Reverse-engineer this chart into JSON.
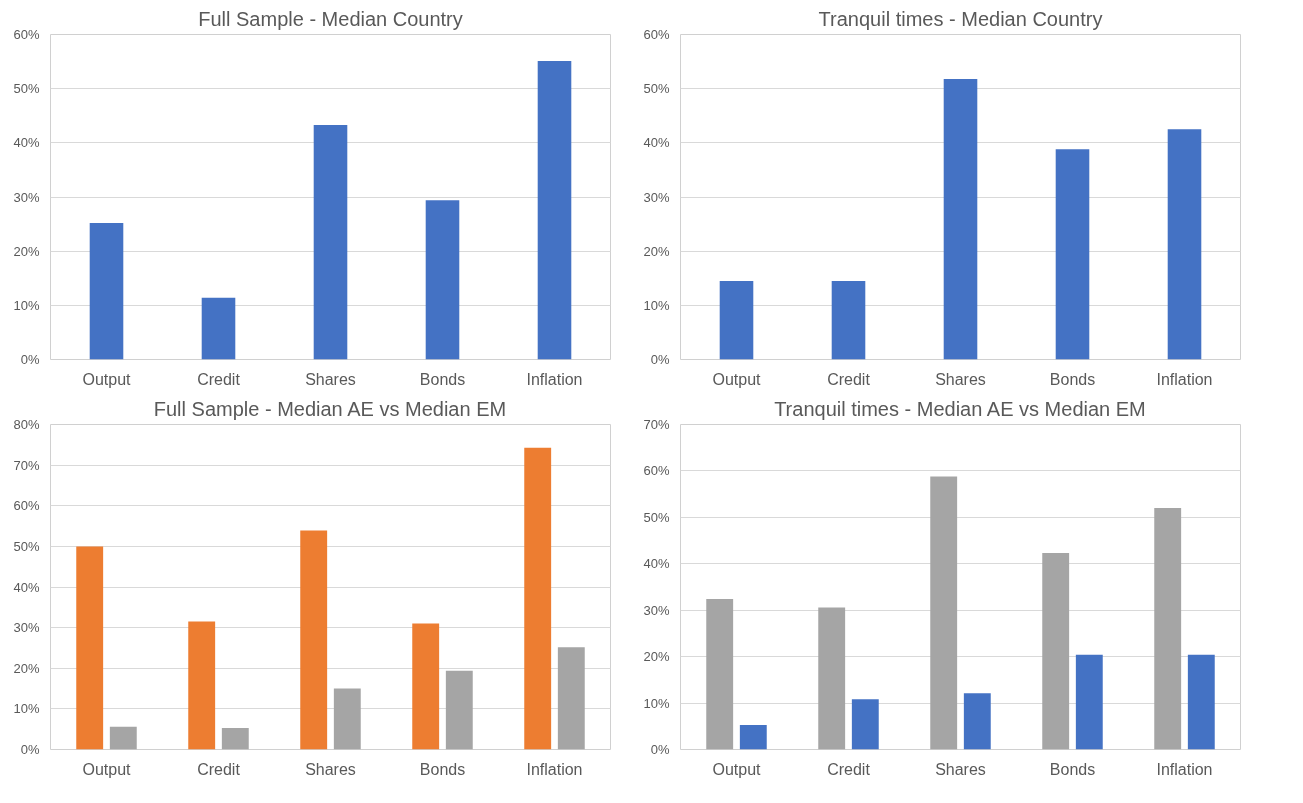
{
  "chart_data": [
    {
      "type": "bar",
      "title": "Full Sample - Median Country",
      "categories": [
        "Output",
        "Credit",
        "Shares",
        "Bonds",
        "Inflation"
      ],
      "grid": "y",
      "ylim": [
        0,
        60
      ],
      "yticks": [
        {
          "value": 0,
          "label": "0%"
        },
        {
          "value": 10,
          "label": "10%"
        },
        {
          "value": 20,
          "label": "20%"
        },
        {
          "value": 30,
          "label": "30%"
        },
        {
          "value": 40,
          "label": "40%"
        },
        {
          "value": 50,
          "label": "50%"
        },
        {
          "value": 60,
          "label": "60%"
        }
      ],
      "series": [
        {
          "color": "#4472c4",
          "values": [
            25.2,
            11.4,
            43.3,
            29.4,
            55.1
          ]
        }
      ]
    },
    {
      "type": "bar",
      "title": "Tranquil times - Median Country",
      "categories": [
        "Output",
        "Credit",
        "Shares",
        "Bonds",
        "Inflation"
      ],
      "grid": "y",
      "ylim": [
        0,
        60
      ],
      "yticks": [
        {
          "value": 0,
          "label": "0%"
        },
        {
          "value": 10,
          "label": "10%"
        },
        {
          "value": 20,
          "label": "20%"
        },
        {
          "value": 30,
          "label": "30%"
        },
        {
          "value": 40,
          "label": "40%"
        },
        {
          "value": 50,
          "label": "50%"
        },
        {
          "value": 60,
          "label": "60%"
        }
      ],
      "series": [
        {
          "color": "#4472c4",
          "values": [
            14.5,
            14.5,
            51.8,
            38.8,
            42.5
          ]
        }
      ]
    },
    {
      "type": "bar",
      "title": "Full Sample - Median AE vs Median EM",
      "categories": [
        "Output",
        "Credit",
        "Shares",
        "Bonds",
        "Inflation"
      ],
      "grid": "y",
      "ylim": [
        0,
        80
      ],
      "yticks": [
        {
          "value": 0,
          "label": "0%"
        },
        {
          "value": 10,
          "label": "10%"
        },
        {
          "value": 20,
          "label": "20%"
        },
        {
          "value": 30,
          "label": "30%"
        },
        {
          "value": 40,
          "label": "40%"
        },
        {
          "value": 50,
          "label": "50%"
        },
        {
          "value": 60,
          "label": "60%"
        },
        {
          "value": 70,
          "label": "70%"
        },
        {
          "value": 80,
          "label": "80%"
        }
      ],
      "series": [
        {
          "color": "#ed7d31",
          "values": [
            50.0,
            31.5,
            53.9,
            31.0,
            74.3
          ]
        },
        {
          "color": "#a5a5a5",
          "values": [
            5.6,
            5.3,
            15.0,
            19.4,
            25.2
          ]
        }
      ]
    },
    {
      "type": "bar",
      "title": "Tranquil times - Median AE vs Median EM",
      "categories": [
        "Output",
        "Credit",
        "Shares",
        "Bonds",
        "Inflation"
      ],
      "grid": "y",
      "ylim": [
        0,
        70
      ],
      "yticks": [
        {
          "value": 0,
          "label": "0%"
        },
        {
          "value": 10,
          "label": "10%"
        },
        {
          "value": 20,
          "label": "20%"
        },
        {
          "value": 30,
          "label": "30%"
        },
        {
          "value": 40,
          "label": "40%"
        },
        {
          "value": 50,
          "label": "50%"
        },
        {
          "value": 60,
          "label": "60%"
        },
        {
          "value": 70,
          "label": "70%"
        }
      ],
      "series": [
        {
          "color": "#a5a5a5",
          "values": [
            32.4,
            30.6,
            58.8,
            42.3,
            52.0
          ]
        },
        {
          "color": "#4472c4",
          "values": [
            5.3,
            10.8,
            12.1,
            20.4,
            20.4
          ]
        }
      ]
    }
  ]
}
